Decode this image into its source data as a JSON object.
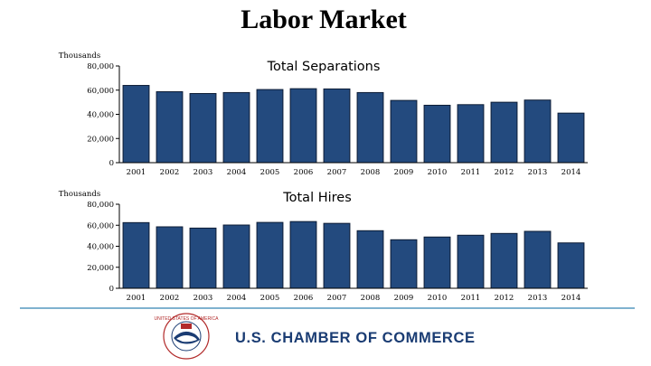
{
  "slide": {
    "title": "Labor Market",
    "footer": {
      "org_name": "U.S. CHAMBER OF COMMERCE",
      "seal_text": "UNITED STATES OF AMERICA"
    }
  },
  "colors": {
    "bar": "#234a7e",
    "bar_edge": "#0c1c35",
    "divider": "#7fb2cf",
    "brand": "#1a3c73"
  },
  "chart_data": [
    {
      "type": "bar",
      "title": "Total Separations",
      "unit_label": "Thousands",
      "categories": [
        "2001",
        "2002",
        "2003",
        "2004",
        "2005",
        "2006",
        "2007",
        "2008",
        "2009",
        "2010",
        "2011",
        "2012",
        "2013",
        "2014"
      ],
      "values": [
        63900,
        58700,
        57200,
        58000,
        60500,
        61200,
        61000,
        58000,
        51500,
        47500,
        48000,
        50000,
        51800,
        41000
      ],
      "y_ticks": [
        "0",
        "20,000",
        "40,000",
        "60,000",
        "80,000"
      ],
      "ylim": [
        0,
        80000
      ],
      "grid": false
    },
    {
      "type": "bar",
      "title": "Total Hires",
      "unit_label": "Thousands",
      "categories": [
        "2001",
        "2002",
        "2003",
        "2004",
        "2005",
        "2006",
        "2007",
        "2008",
        "2009",
        "2010",
        "2011",
        "2012",
        "2013",
        "2014"
      ],
      "values": [
        62500,
        58500,
        57300,
        60200,
        62700,
        63500,
        61800,
        54800,
        46200,
        48800,
        50500,
        52200,
        54200,
        43200
      ],
      "y_ticks": [
        "0",
        "20,000",
        "40,000",
        "60,000",
        "80,000"
      ],
      "ylim": [
        0,
        80000
      ],
      "grid": false
    }
  ]
}
